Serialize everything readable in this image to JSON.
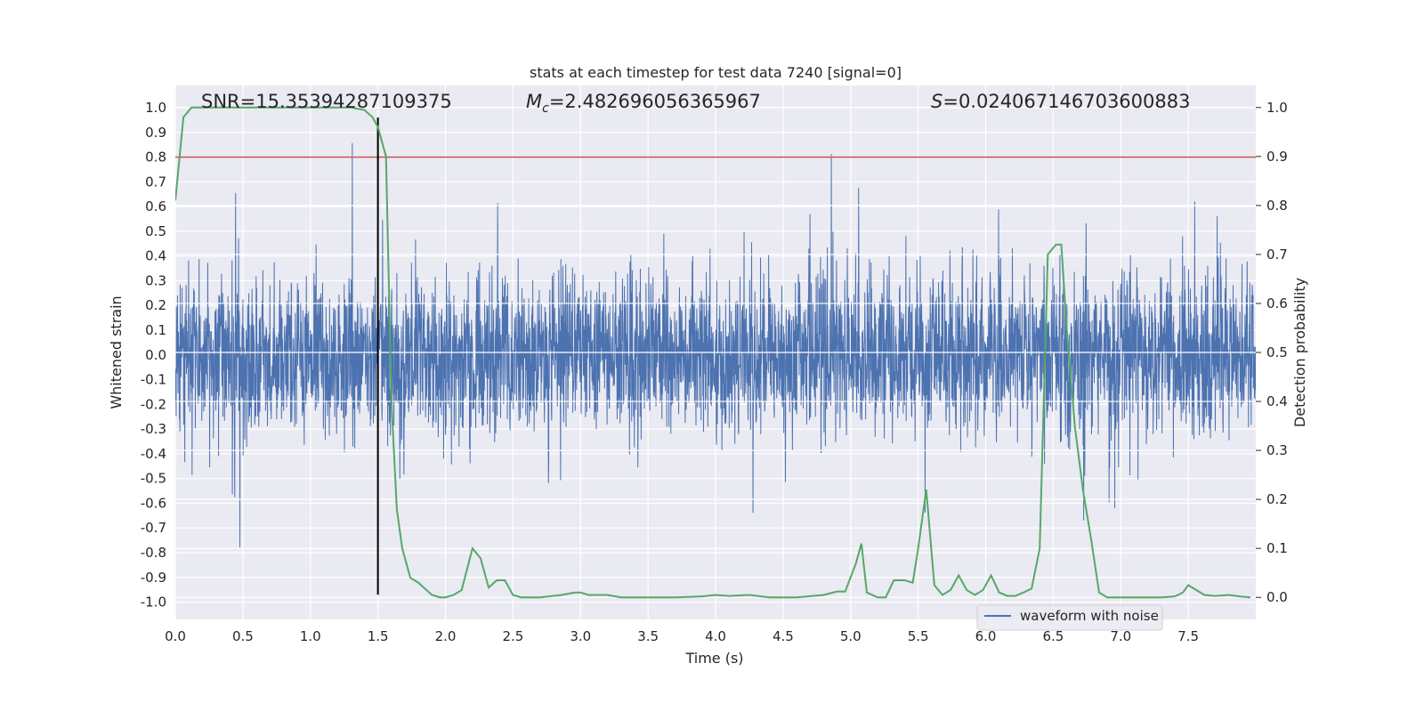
{
  "chart_data": {
    "type": "line",
    "title": "stats at each timestep for test data 7240 [signal=0]",
    "xlabel": "Time (s)",
    "ylabel_left": "Whitened strain",
    "ylabel_right": "Detection probability",
    "xlim": [
      0,
      8
    ],
    "ylim_left": [
      -1.07,
      1.09
    ],
    "ylim_right": [
      -0.045,
      1.045
    ],
    "x_ticks": [
      "0.0",
      "0.5",
      "1.0",
      "1.5",
      "2.0",
      "2.5",
      "3.0",
      "3.5",
      "4.0",
      "4.5",
      "5.0",
      "5.5",
      "6.0",
      "6.5",
      "7.0",
      "7.5"
    ],
    "y_ticks_left": [
      "-1.0",
      "-0.9",
      "-0.8",
      "-0.7",
      "-0.6",
      "-0.5",
      "-0.4",
      "-0.3",
      "-0.2",
      "-0.1",
      "0.0",
      "0.1",
      "0.2",
      "0.3",
      "0.4",
      "0.5",
      "0.6",
      "0.7",
      "0.8",
      "0.9",
      "1.0"
    ],
    "y_ticks_right": [
      "0.0",
      "0.1",
      "0.2",
      "0.3",
      "0.4",
      "0.5",
      "0.6",
      "0.7",
      "0.8",
      "0.9",
      "1.0"
    ],
    "grid": true,
    "annotations": {
      "snr": "SNR=15.35394287109375",
      "mc_symbol": "M",
      "mc_sub": "c",
      "mc_value": "=2.482696056365967",
      "s_symbol": "S",
      "s_value": "=0.024067146703600883"
    },
    "legend": {
      "location": "lower right",
      "entries": [
        "waveform with noise"
      ]
    },
    "threshold": {
      "value": 0.8,
      "color": "#c44e52"
    },
    "marker_time": {
      "x": 1.5,
      "color": "#000000"
    },
    "series": [
      {
        "name": "waveform with noise",
        "axis": "left",
        "color": "#4c72b0",
        "description": "whitened noise strain, ~8192 samples over 8 s, amplitude mostly within ±0.35 with spikes to ±0.9",
        "envelope_note": "rendered as dense vertical spikes"
      },
      {
        "name": "detection probability",
        "axis": "right",
        "color": "#55a868",
        "x": [
          0.0,
          0.06,
          0.12,
          0.2,
          0.4,
          0.6,
          0.8,
          1.0,
          1.2,
          1.3,
          1.4,
          1.46,
          1.5,
          1.52,
          1.56,
          1.6,
          1.64,
          1.68,
          1.74,
          1.8,
          1.86,
          1.9,
          1.96,
          2.0,
          2.06,
          2.12,
          2.2,
          2.26,
          2.32,
          2.38,
          2.44,
          2.5,
          2.56,
          2.7,
          2.86,
          2.96,
          3.0,
          3.06,
          3.2,
          3.3,
          3.5,
          3.7,
          3.9,
          4.0,
          4.1,
          4.25,
          4.4,
          4.6,
          4.8,
          4.9,
          4.96,
          5.04,
          5.08,
          5.12,
          5.2,
          5.26,
          5.32,
          5.4,
          5.46,
          5.5,
          5.56,
          5.62,
          5.68,
          5.74,
          5.8,
          5.86,
          5.92,
          5.98,
          6.04,
          6.1,
          6.16,
          6.22,
          6.28,
          6.34,
          6.4,
          6.46,
          6.52,
          6.56,
          6.6,
          6.66,
          6.72,
          6.78,
          6.84,
          6.9,
          7.0,
          7.1,
          7.3,
          7.4,
          7.46,
          7.5,
          7.56,
          7.62,
          7.7,
          7.8,
          7.88,
          7.96
        ],
        "values": [
          0.81,
          0.98,
          1.0,
          1.0,
          1.0,
          1.0,
          1.0,
          1.0,
          1.0,
          1.0,
          0.995,
          0.98,
          0.96,
          0.94,
          0.9,
          0.4,
          0.18,
          0.1,
          0.04,
          0.03,
          0.015,
          0.005,
          0.0,
          0.0,
          0.005,
          0.015,
          0.1,
          0.08,
          0.02,
          0.035,
          0.035,
          0.005,
          0.0,
          0.0,
          0.005,
          0.01,
          0.01,
          0.005,
          0.005,
          0.0,
          0.0,
          0.0,
          0.002,
          0.005,
          0.003,
          0.005,
          0.0,
          0.0,
          0.005,
          0.012,
          0.012,
          0.07,
          0.11,
          0.01,
          0.0,
          0.0,
          0.035,
          0.035,
          0.03,
          0.1,
          0.22,
          0.025,
          0.005,
          0.015,
          0.045,
          0.015,
          0.005,
          0.015,
          0.045,
          0.01,
          0.003,
          0.003,
          0.01,
          0.018,
          0.1,
          0.7,
          0.72,
          0.72,
          0.55,
          0.35,
          0.22,
          0.12,
          0.01,
          0.0,
          0.0,
          0.0,
          0.0,
          0.002,
          0.01,
          0.025,
          0.015,
          0.005,
          0.003,
          0.005,
          0.002,
          0.0
        ]
      }
    ]
  }
}
